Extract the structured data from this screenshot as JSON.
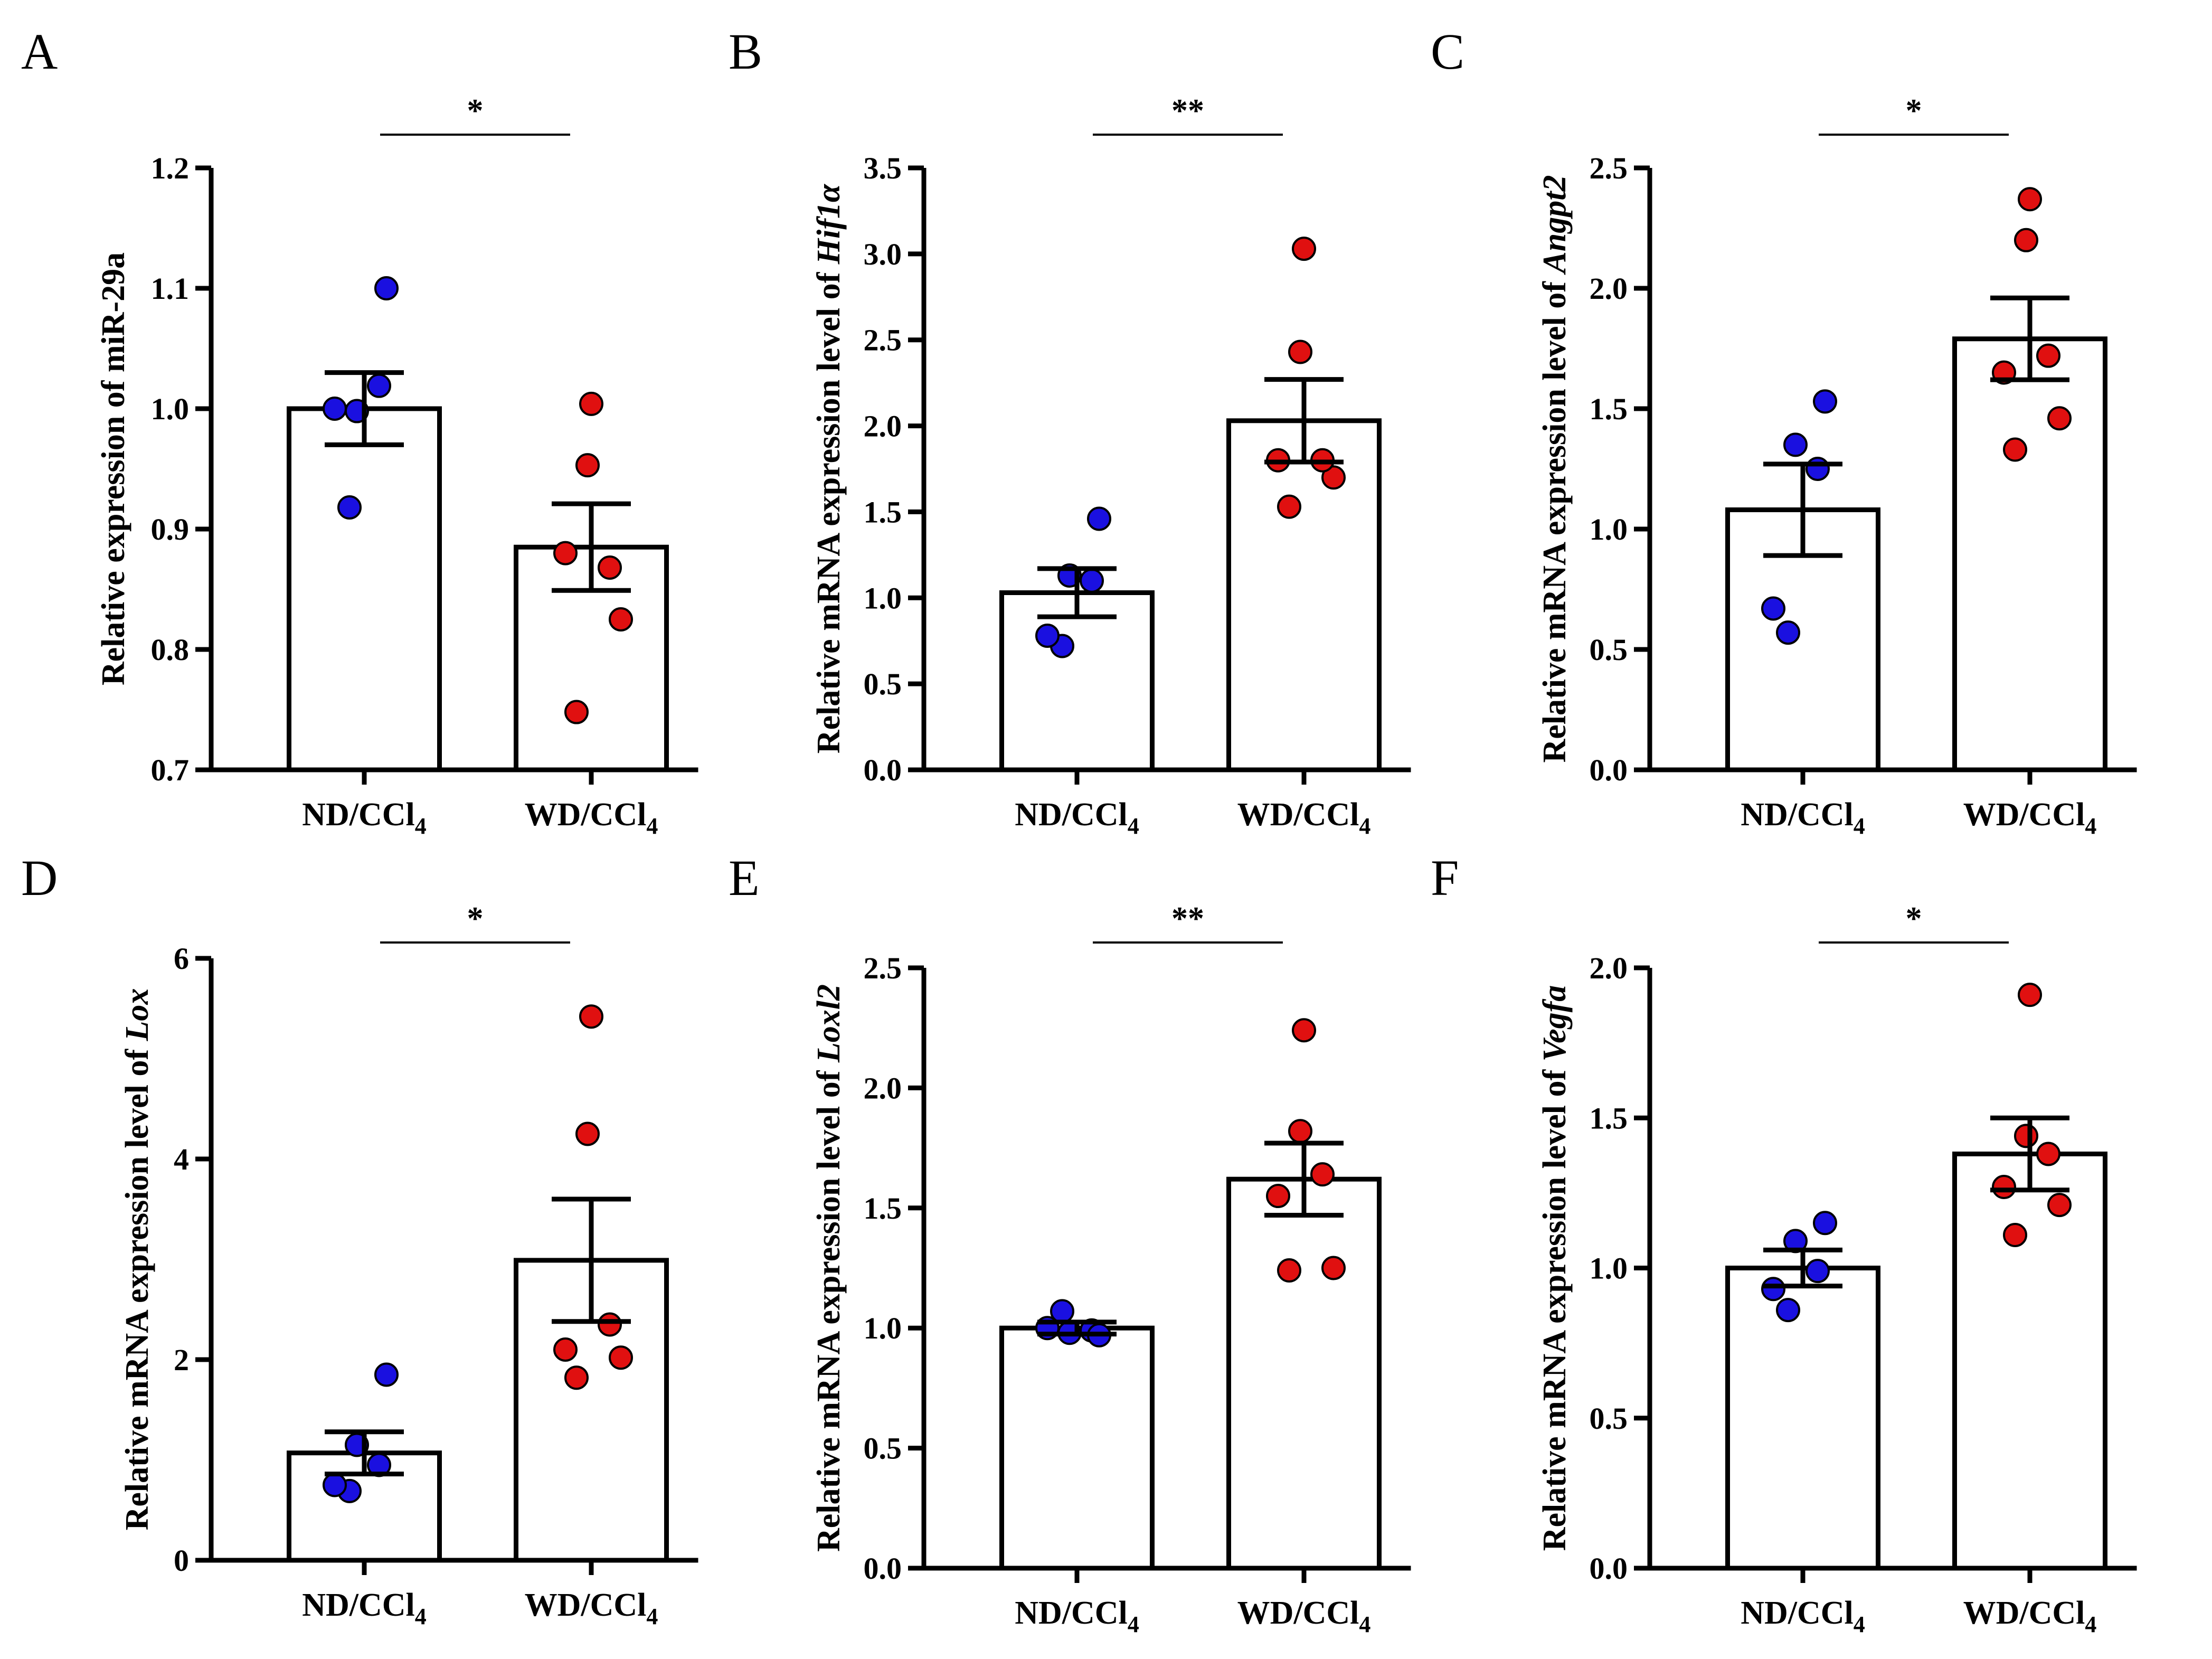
{
  "chart_data": [
    {
      "type": "bar",
      "panel": "A",
      "ylabel_prefix": "Relative expression of miR-29a",
      "ylabel_gene": "",
      "categories": [
        "ND/CCl",
        "WD/CCl"
      ],
      "category_subscript": "4",
      "values": [
        1.0,
        0.885
      ],
      "errors": [
        0.03,
        0.036
      ],
      "points": [
        [
          0.918,
          1.0,
          1.019,
          0.998,
          1.1
        ],
        [
          0.748,
          0.825,
          0.88,
          0.868,
          0.953,
          1.004
        ]
      ],
      "colors": [
        "#1a10e0",
        "#e01010"
      ],
      "ylim": [
        0.7,
        1.2
      ],
      "yticks": [
        "0.7",
        "0.8",
        "0.9",
        "1.0",
        "1.1",
        "1.2"
      ],
      "significance": "*"
    },
    {
      "type": "bar",
      "panel": "B",
      "ylabel_prefix": "Relative mRNA expression level of ",
      "ylabel_gene": "Hif1α",
      "categories": [
        "ND/CCl",
        "WD/CCl"
      ],
      "category_subscript": "4",
      "values": [
        1.03,
        2.03
      ],
      "errors": [
        0.14,
        0.24
      ],
      "points": [
        [
          0.72,
          0.78,
          1.1,
          1.13,
          1.46
        ],
        [
          1.53,
          1.7,
          1.8,
          1.8,
          2.43,
          3.03
        ]
      ],
      "colors": [
        "#1a10e0",
        "#e01010"
      ],
      "ylim": [
        0.0,
        3.5
      ],
      "yticks": [
        "0.0",
        "0.5",
        "1.0",
        "1.5",
        "2.0",
        "2.5",
        "3.0",
        "3.5"
      ],
      "significance": "**"
    },
    {
      "type": "bar",
      "panel": "C",
      "ylabel_prefix": "Relative mRNA expression level of ",
      "ylabel_gene": "Angpt2",
      "categories": [
        "ND/CCl",
        "WD/CCl"
      ],
      "category_subscript": "4",
      "values": [
        1.08,
        1.79
      ],
      "errors": [
        0.19,
        0.17
      ],
      "points": [
        [
          0.57,
          0.67,
          1.25,
          1.35,
          1.53
        ],
        [
          1.33,
          1.46,
          1.65,
          1.72,
          2.2,
          2.37
        ]
      ],
      "colors": [
        "#1a10e0",
        "#e01010"
      ],
      "ylim": [
        0.0,
        2.5
      ],
      "yticks": [
        "0.0",
        "0.5",
        "1.0",
        "1.5",
        "2.0",
        "2.5"
      ],
      "significance": "*"
    },
    {
      "type": "bar",
      "panel": "D",
      "ylabel_prefix": "Relative mRNA expression level of ",
      "ylabel_gene": "Lox",
      "categories": [
        "ND/CCl",
        "WD/CCl"
      ],
      "category_subscript": "4",
      "values": [
        1.07,
        2.99
      ],
      "errors": [
        0.21,
        0.61
      ],
      "points": [
        [
          0.69,
          0.75,
          0.95,
          1.15,
          1.85
        ],
        [
          1.82,
          2.02,
          2.1,
          2.35,
          4.25,
          5.42
        ]
      ],
      "colors": [
        "#1a10e0",
        "#e01010"
      ],
      "ylim": [
        0,
        6
      ],
      "yticks": [
        "0",
        "2",
        "4",
        "6"
      ],
      "significance": "*"
    },
    {
      "type": "bar",
      "panel": "E",
      "ylabel_prefix": "Relative mRNA expression level of ",
      "ylabel_gene": "Loxl2",
      "categories": [
        "ND/CCl",
        "WD/CCl"
      ],
      "category_subscript": "4",
      "values": [
        1.0,
        1.62
      ],
      "errors": [
        0.025,
        0.15
      ],
      "points": [
        [
          1.07,
          1.0,
          0.99,
          0.98,
          0.97
        ],
        [
          1.24,
          1.25,
          1.55,
          1.64,
          1.82,
          2.24
        ]
      ],
      "colors": [
        "#1a10e0",
        "#e01010"
      ],
      "ylim": [
        0.0,
        2.5
      ],
      "yticks": [
        "0.0",
        "0.5",
        "1.0",
        "1.5",
        "2.0",
        "2.5"
      ],
      "significance": "**"
    },
    {
      "type": "bar",
      "panel": "F",
      "ylabel_prefix": "Relative mRNA expression level of ",
      "ylabel_gene": "Vegfa",
      "categories": [
        "ND/CCl",
        "WD/CCl"
      ],
      "category_subscript": "4",
      "values": [
        1.0,
        1.38
      ],
      "errors": [
        0.06,
        0.12
      ],
      "points": [
        [
          0.86,
          0.93,
          0.99,
          1.09,
          1.15
        ],
        [
          1.11,
          1.21,
          1.27,
          1.38,
          1.44,
          1.91
        ]
      ],
      "colors": [
        "#1a10e0",
        "#e01010"
      ],
      "ylim": [
        0.0,
        2.0
      ],
      "yticks": [
        "0.0",
        "0.5",
        "1.0",
        "1.5",
        "2.0"
      ],
      "significance": "*"
    }
  ]
}
